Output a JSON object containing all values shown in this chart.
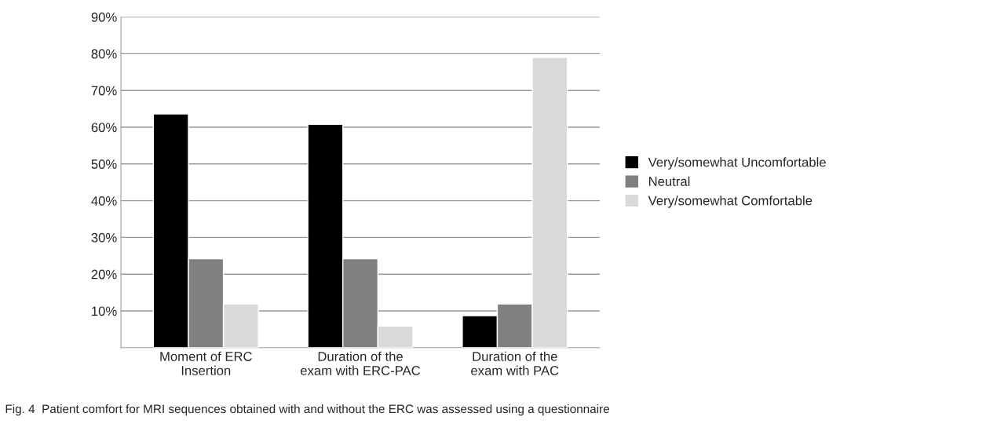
{
  "chart_data": {
    "type": "bar",
    "categories": [
      "Moment of ERC\nInsertion",
      "Duration of the\nexam with ERC-PAC",
      "Duration of the\nexam with PAC"
    ],
    "series": [
      {
        "name": "Very/somewhat Uncomfortable",
        "color": "#000000",
        "values": [
          63.6,
          60.8,
          8.7
        ]
      },
      {
        "name": "Neutral",
        "color": "#808080",
        "values": [
          24.2,
          24.2,
          11.9
        ]
      },
      {
        "name": "Very/somewhat Comfortable",
        "color": "#d9d9d9",
        "values": [
          11.9,
          5.9,
          79.0
        ]
      }
    ],
    "ylim": [
      0,
      90
    ],
    "yticks": [
      {
        "value": 10,
        "label": "10%"
      },
      {
        "value": 20,
        "label": "20%"
      },
      {
        "value": 30,
        "label": "30%"
      },
      {
        "value": 40,
        "label": "40%"
      },
      {
        "value": 50,
        "label": "50%"
      },
      {
        "value": 60,
        "label": "60%"
      },
      {
        "value": 70,
        "label": "70%"
      },
      {
        "value": 80,
        "label": "80%"
      },
      {
        "value": 90,
        "label": "90%"
      }
    ],
    "grid": "y",
    "legend": "right",
    "annotations": [
      "Fig. 4  Patient comfort for MRI sequences obtained with and without the ERC was assessed using a questionnaire"
    ]
  }
}
